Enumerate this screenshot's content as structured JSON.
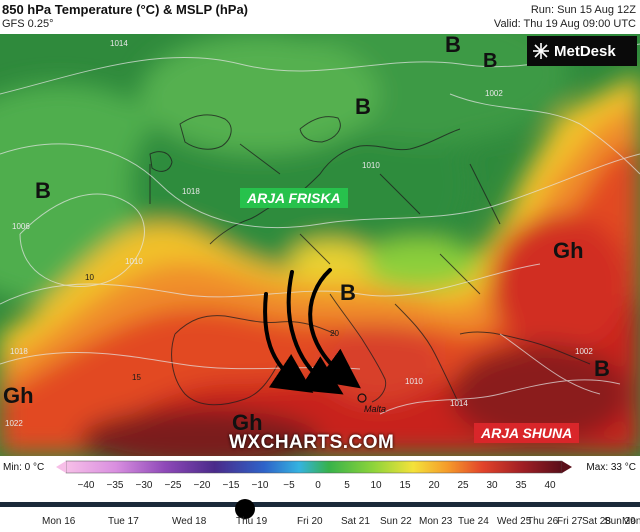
{
  "header": {
    "title": "850 hPa Temperature (°C) & MSLP (hPa)",
    "model": "GFS 0.25°",
    "run": "Run: Sun 15 Aug 12Z",
    "valid": "Valid: Thu 19 Aug 09:00 UTC"
  },
  "logo": {
    "text": "MetDesk"
  },
  "map": {
    "pressure_labels": [
      "B",
      "B",
      "B",
      "B",
      "Gh",
      "Gh",
      "Gh",
      "B",
      "B"
    ],
    "tags": {
      "cool": "ARJA FRISKA",
      "hot": "ARJA SHUNA"
    },
    "watermark": "WXCHARTS.COM",
    "city": "Malta",
    "isobar_labels": [
      "1014",
      "1018",
      "1006",
      "1010",
      "1010",
      "1002",
      "1018",
      "1022",
      "1010",
      "1014",
      "1002"
    ],
    "contour_labels": [
      "10",
      "15",
      "20"
    ],
    "colors": {
      "cool_tag": "#27c24c",
      "hot_tag": "#d9262a"
    }
  },
  "legend": {
    "min_label": "Min: 0 °C",
    "max_label": "Max: 33 °C",
    "ticks": [
      "−40",
      "−35",
      "−30",
      "−25",
      "−20",
      "−15",
      "−10",
      "−5",
      "0",
      "5",
      "10",
      "15",
      "20",
      "25",
      "30",
      "35",
      "40"
    ]
  },
  "timeline": {
    "days": [
      "Mon 16",
      "Tue 17",
      "Wed 18",
      "Thu 19",
      "Fri 20",
      "Sat 21",
      "Sun 22",
      "Mon 23",
      "Tue 24",
      "Wed 25",
      "Thu 26",
      "Fri 27",
      "Sat 28",
      "Sun 29",
      "Mon 30",
      "Tu"
    ],
    "current_day": "Thu 19"
  }
}
